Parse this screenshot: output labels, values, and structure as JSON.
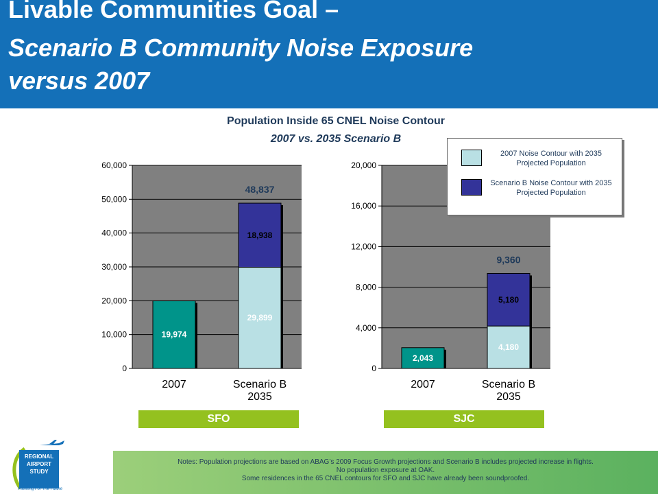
{
  "header": {
    "line1": "Livable Communities Goal –",
    "line2": "Scenario B Community Noise Exposure",
    "line3": "versus 2007"
  },
  "chart_title": "Population Inside 65 CNEL Noise Contour",
  "chart_subtitle": "2007 vs. 2035 Scenario B",
  "legend": [
    {
      "label": "2007 Noise Contour with 2035 Projected Population",
      "color": "#b9e0e4"
    },
    {
      "label": "Scenario B Noise Contour with 2035 Projected Population",
      "color": "#333399"
    }
  ],
  "colors": {
    "plot_bg": "#808080",
    "bar_2007": "#00948a",
    "bar_base": "#b9e0e4",
    "bar_increase": "#333399",
    "header_bg": "#1470b8",
    "label_band": "#94c11f"
  },
  "chart_data": [
    {
      "type": "bar",
      "stacked": true,
      "airport": "SFO",
      "categories": [
        "2007",
        "Scenario B 2035"
      ],
      "series": [
        {
          "name": "2007 Noise Contour with 2035 Projected Population",
          "values": [
            19974,
            29899
          ]
        },
        {
          "name": "Scenario B Noise Contour with 2035 Projected Population",
          "values": [
            0,
            18938
          ]
        }
      ],
      "segment_labels": [
        [
          "19,974"
        ],
        [
          "29,899",
          "18,938"
        ]
      ],
      "totals": [
        null,
        "48,837"
      ],
      "yticks": [
        "0",
        "10,000",
        "20,000",
        "30,000",
        "40,000",
        "50,000",
        "60,000"
      ],
      "ylim": [
        0,
        60000
      ],
      "grid": true
    },
    {
      "type": "bar",
      "stacked": true,
      "airport": "SJC",
      "categories": [
        "2007",
        "Scenario B 2035"
      ],
      "series": [
        {
          "name": "2007 Noise Contour with 2035 Projected Population",
          "values": [
            2043,
            4180
          ]
        },
        {
          "name": "Scenario B Noise Contour with 2035 Projected Population",
          "values": [
            0,
            5180
          ]
        }
      ],
      "segment_labels": [
        [
          "2,043"
        ],
        [
          "4,180",
          "5,180"
        ]
      ],
      "totals": [
        null,
        "9,360"
      ],
      "yticks": [
        "0",
        "4,000",
        "8,000",
        "12,000",
        "16,000",
        "20,000"
      ],
      "ylim": [
        0,
        20000
      ],
      "grid": true
    }
  ],
  "category_labels": [
    [
      "2007"
    ],
    [
      "Scenario B",
      "2035"
    ]
  ],
  "airports": {
    "sfo": "SFO",
    "sjc": "SJC"
  },
  "notes": [
    "Notes:  Population projections are based on ABAG’s 2009 Focus Growth projections and Scenario B includes projected increase in flights.",
    "No population exposure at OAK.",
    "Some residences in the 65 CNEL contours for SFO and SJC have already been soundproofed."
  ],
  "logo": {
    "line1": "REGIONAL",
    "line2": "AIRPORT",
    "line3": "STUDY",
    "tagline": "Planning For The Future"
  }
}
